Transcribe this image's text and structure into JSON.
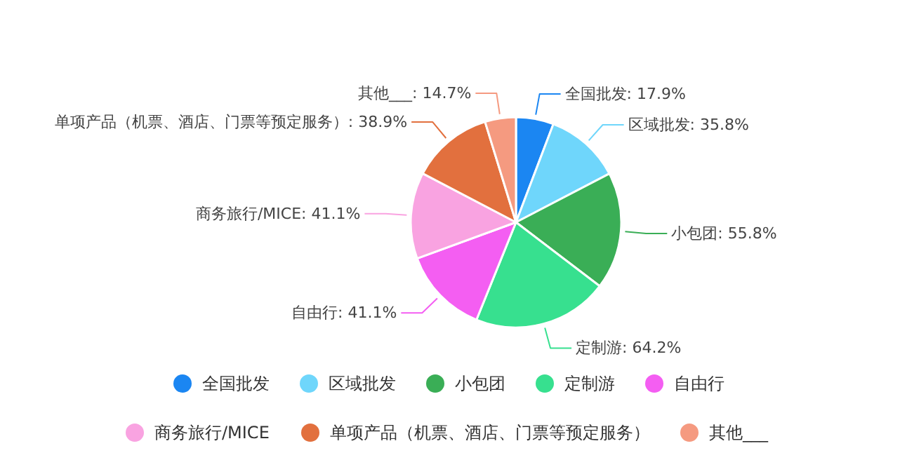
{
  "chart_data": {
    "type": "pie",
    "categories": [
      "全国批发",
      "区域批发",
      "小包团",
      "定制游",
      "自由行",
      "商务旅行/MICE",
      "单项产品（机票、酒店、门票等预定服务）",
      "其他___"
    ],
    "values": [
      17.9,
      35.8,
      55.8,
      64.2,
      41.1,
      41.1,
      38.9,
      14.7
    ],
    "value_labels": [
      "全国批发: 17.9%",
      "区域批发: 35.8%",
      "小包团: 55.8%",
      "定制游: 64.2%",
      "自由行: 41.1%",
      "商务旅行/MICE: 41.1%",
      "单项产品（机票、酒店、门票等预定服务）: 38.9%",
      "其他___: 14.7%"
    ],
    "colors": [
      "#1b86f2",
      "#6fd6fb",
      "#3aae56",
      "#37e08f",
      "#f45ef2",
      "#f9a3e1",
      "#e2703e",
      "#f59a80"
    ],
    "legend": "bottom"
  }
}
